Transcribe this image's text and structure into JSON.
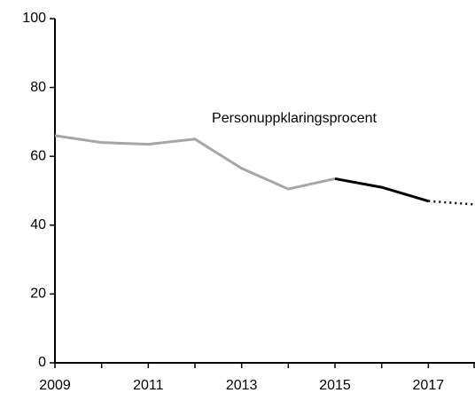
{
  "chart_data": {
    "type": "line",
    "annotation": "Personuppklaringsprocent",
    "x": [
      2009,
      2010,
      2011,
      2012,
      2013,
      2014,
      2015,
      2016,
      2017,
      2018
    ],
    "series": [
      {
        "color": "#a6a6a6",
        "dashed": false,
        "values": [
          66,
          64,
          63.5,
          65,
          56.5,
          50.5,
          53.5,
          null,
          null,
          null
        ]
      },
      {
        "color": "#000000",
        "dashed": false,
        "values": [
          null,
          null,
          null,
          null,
          null,
          null,
          53.5,
          51,
          47,
          null
        ]
      },
      {
        "color": "#000000",
        "dashed": true,
        "values": [
          null,
          null,
          null,
          null,
          null,
          null,
          null,
          null,
          47,
          46
        ]
      }
    ],
    "xlim": [
      2009,
      2018
    ],
    "xticks": [
      2009,
      2011,
      2013,
      2015,
      2017
    ],
    "xminorticks": [
      2010,
      2012,
      2014,
      2016,
      2018
    ],
    "ylim": [
      0,
      100
    ],
    "yticks": [
      0,
      20,
      40,
      60,
      80,
      100
    ],
    "grid": false
  }
}
